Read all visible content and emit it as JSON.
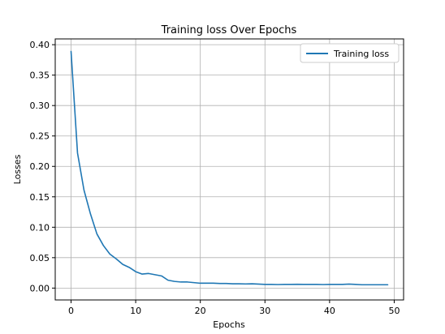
{
  "chart_data": {
    "type": "line",
    "title": "Training loss Over Epochs",
    "xlabel": "Epochs",
    "ylabel": "Losses",
    "xlim": [
      -2.45,
      51.45
    ],
    "ylim": [
      -0.0195,
      0.4095
    ],
    "xticks": [
      0,
      10,
      20,
      30,
      40,
      50
    ],
    "xtick_labels": [
      "0",
      "10",
      "20",
      "30",
      "40",
      "50"
    ],
    "yticks": [
      0.0,
      0.05,
      0.1,
      0.15,
      0.2,
      0.25,
      0.3,
      0.35,
      0.4
    ],
    "ytick_labels": [
      "0.00",
      "0.05",
      "0.10",
      "0.15",
      "0.20",
      "0.25",
      "0.30",
      "0.35",
      "0.40"
    ],
    "grid": true,
    "legend_position": "top-right",
    "series": [
      {
        "name": "Training loss",
        "color": "#1f77b4",
        "x": [
          0,
          1,
          2,
          3,
          4,
          5,
          6,
          7,
          8,
          9,
          10,
          11,
          12,
          13,
          14,
          15,
          16,
          17,
          18,
          19,
          20,
          21,
          22,
          23,
          24,
          25,
          26,
          27,
          28,
          29,
          30,
          31,
          32,
          33,
          34,
          35,
          36,
          37,
          38,
          39,
          40,
          41,
          42,
          43,
          44,
          45,
          46,
          47,
          48,
          49
        ],
        "values": [
          0.389,
          0.222,
          0.161,
          0.122,
          0.089,
          0.07,
          0.056,
          0.048,
          0.039,
          0.034,
          0.027,
          0.023,
          0.024,
          0.022,
          0.02,
          0.013,
          0.011,
          0.01,
          0.01,
          0.009,
          0.008,
          0.008,
          0.008,
          0.0075,
          0.0075,
          0.007,
          0.007,
          0.0068,
          0.007,
          0.0065,
          0.006,
          0.006,
          0.0058,
          0.006,
          0.006,
          0.0062,
          0.006,
          0.006,
          0.006,
          0.0058,
          0.006,
          0.006,
          0.006,
          0.0065,
          0.006,
          0.0055,
          0.0055,
          0.0055,
          0.0055,
          0.0055
        ]
      }
    ]
  }
}
